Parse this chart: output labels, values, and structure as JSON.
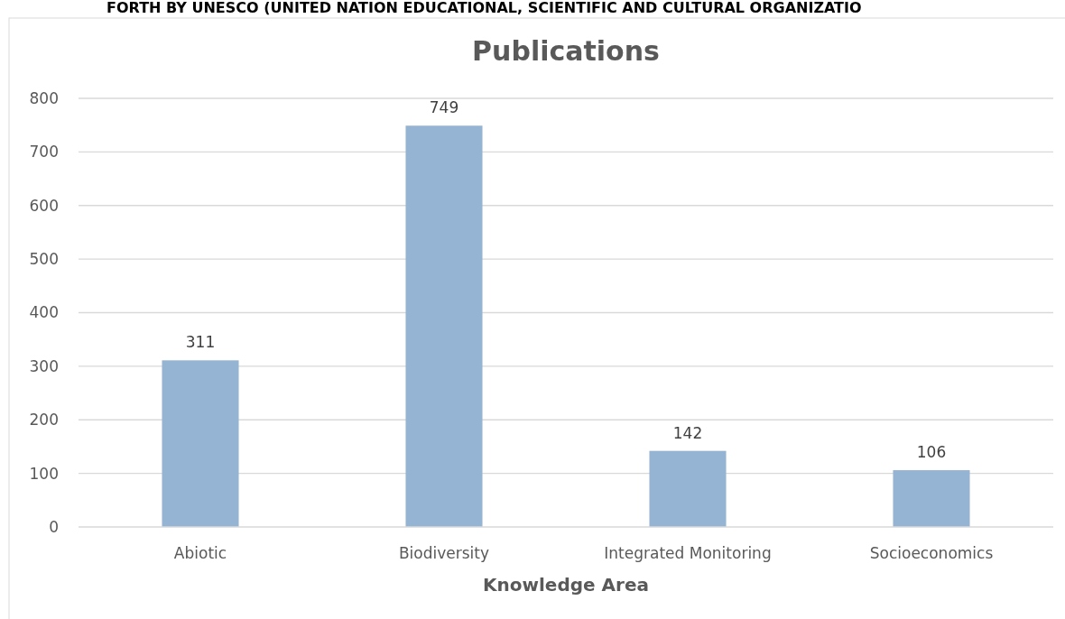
{
  "chart_data": {
    "type": "bar",
    "title": "Publications",
    "xlabel": "Knowledge Area",
    "annotations": [
      "FORTH BY UNESCO (UNITED NATION EDUCATIONAL, SCIENTIFIC AND CULTURAL ORGANIZATIO"
    ],
    "categories": [
      "Abiotic",
      "Biodiversity",
      "Integrated Monitoring",
      "Socioeconomics"
    ],
    "values": [
      311,
      749,
      142,
      106
    ],
    "color": "#95b3d2",
    "ylim": [
      0,
      800
    ],
    "yticks": [
      0,
      100,
      200,
      300,
      400,
      500,
      600,
      700,
      800
    ],
    "grid": "y",
    "data_labels": true
  }
}
